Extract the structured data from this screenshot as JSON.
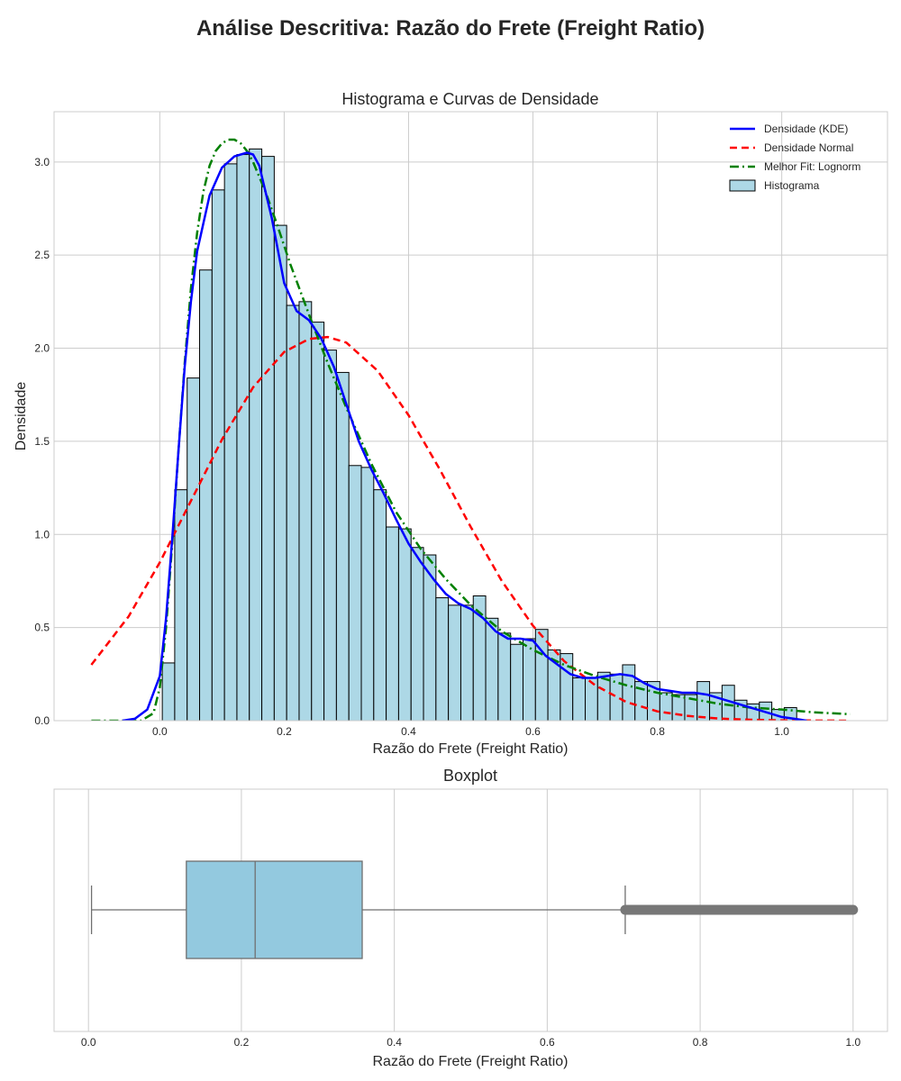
{
  "page": {
    "suptitle": "Análise Descritiva: Razão do Frete (Freight Ratio)"
  },
  "chart_data": [
    {
      "type": "bar",
      "title": "Histograma e Curvas de Densidade",
      "xlabel": "Razão do Frete (Freight Ratio)",
      "ylabel": "Densidade",
      "xlim": [
        -0.17,
        1.17
      ],
      "ylim": [
        0,
        3.27
      ],
      "x_ticks": [
        "0.0",
        "0.2",
        "0.4",
        "0.6",
        "0.8",
        "1.0"
      ],
      "x_tick_values": [
        0.0,
        0.2,
        0.4,
        0.6,
        0.8,
        1.0
      ],
      "y_ticks": [
        "0.0",
        "0.5",
        "1.0",
        "1.5",
        "2.0",
        "2.5",
        "3.0"
      ],
      "y_tick_values": [
        0,
        0.5,
        1.0,
        1.5,
        2.0,
        2.5,
        3.0
      ],
      "grid": true,
      "legend_position": "top-right",
      "histogram": {
        "name": "Histograma",
        "color": "#add8e6",
        "edge_color": "#000000",
        "bin_start": 0.004,
        "bin_width": 0.02,
        "values": [
          0.31,
          1.24,
          1.84,
          2.42,
          2.85,
          2.99,
          3.04,
          3.07,
          3.03,
          2.66,
          2.23,
          2.25,
          2.14,
          1.99,
          1.87,
          1.37,
          1.36,
          1.24,
          1.04,
          1.03,
          0.93,
          0.89,
          0.66,
          0.62,
          0.62,
          0.67,
          0.55,
          0.47,
          0.41,
          0.44,
          0.49,
          0.38,
          0.36,
          0.23,
          0.23,
          0.26,
          0.25,
          0.3,
          0.21,
          0.21,
          0.15,
          0.14,
          0.14,
          0.21,
          0.15,
          0.19,
          0.11,
          0.09,
          0.1,
          0.06,
          0.07
        ]
      },
      "series": [
        {
          "name": "Densidade (KDE)",
          "color": "#0000ff",
          "style": "solid",
          "x": [
            -0.06,
            -0.04,
            -0.02,
            0.0,
            0.01,
            0.02,
            0.03,
            0.04,
            0.05,
            0.06,
            0.08,
            0.1,
            0.12,
            0.14,
            0.15,
            0.16,
            0.18,
            0.2,
            0.22,
            0.24,
            0.26,
            0.28,
            0.3,
            0.32,
            0.34,
            0.36,
            0.38,
            0.4,
            0.42,
            0.44,
            0.46,
            0.48,
            0.5,
            0.52,
            0.54,
            0.56,
            0.58,
            0.6,
            0.62,
            0.64,
            0.66,
            0.68,
            0.7,
            0.72,
            0.74,
            0.76,
            0.78,
            0.8,
            0.82,
            0.84,
            0.86,
            0.88,
            0.9,
            0.92,
            0.94,
            0.96,
            0.98,
            1.0,
            1.02,
            1.04
          ],
          "y": [
            0.0,
            0.01,
            0.06,
            0.24,
            0.55,
            0.98,
            1.45,
            1.9,
            2.25,
            2.52,
            2.82,
            2.97,
            3.03,
            3.05,
            3.04,
            2.98,
            2.7,
            2.35,
            2.2,
            2.15,
            2.05,
            1.9,
            1.7,
            1.5,
            1.35,
            1.22,
            1.08,
            0.95,
            0.85,
            0.76,
            0.68,
            0.63,
            0.6,
            0.55,
            0.48,
            0.44,
            0.44,
            0.43,
            0.35,
            0.3,
            0.25,
            0.23,
            0.23,
            0.24,
            0.25,
            0.24,
            0.2,
            0.17,
            0.16,
            0.15,
            0.15,
            0.14,
            0.12,
            0.1,
            0.08,
            0.06,
            0.04,
            0.02,
            0.01,
            0.0
          ]
        },
        {
          "name": "Densidade Normal",
          "color": "#ff0000",
          "style": "dashed",
          "x": [
            -0.11,
            -0.05,
            0.0,
            0.05,
            0.1,
            0.15,
            0.2,
            0.24,
            0.27,
            0.3,
            0.35,
            0.4,
            0.45,
            0.5,
            0.55,
            0.6,
            0.65,
            0.7,
            0.75,
            0.8,
            0.85,
            0.9,
            0.95,
            1.0,
            1.05,
            1.11
          ],
          "y": [
            0.3,
            0.56,
            0.85,
            1.18,
            1.51,
            1.79,
            1.98,
            2.05,
            2.06,
            2.03,
            1.88,
            1.64,
            1.35,
            1.04,
            0.75,
            0.51,
            0.32,
            0.19,
            0.1,
            0.05,
            0.025,
            0.011,
            0.005,
            0.002,
            0.001,
            0.0
          ]
        },
        {
          "name": "Melhor Fit: Lognorm",
          "color": "#008000",
          "style": "dashdot",
          "x": [
            -0.11,
            -0.03,
            -0.01,
            0.0,
            0.01,
            0.02,
            0.03,
            0.04,
            0.05,
            0.06,
            0.07,
            0.08,
            0.09,
            0.1,
            0.11,
            0.12,
            0.13,
            0.14,
            0.15,
            0.17,
            0.19,
            0.21,
            0.24,
            0.27,
            0.3,
            0.34,
            0.38,
            0.42,
            0.46,
            0.5,
            0.55,
            0.6,
            0.65,
            0.7,
            0.75,
            0.8,
            0.85,
            0.9,
            0.95,
            1.0,
            1.05,
            1.11
          ],
          "y": [
            0.0,
            0.0,
            0.04,
            0.18,
            0.5,
            0.95,
            1.45,
            1.92,
            2.32,
            2.62,
            2.84,
            2.98,
            3.06,
            3.1,
            3.12,
            3.12,
            3.1,
            3.06,
            3.0,
            2.84,
            2.65,
            2.45,
            2.18,
            1.92,
            1.68,
            1.38,
            1.12,
            0.92,
            0.76,
            0.62,
            0.48,
            0.38,
            0.3,
            0.24,
            0.19,
            0.15,
            0.12,
            0.09,
            0.07,
            0.06,
            0.045,
            0.035
          ]
        }
      ]
    },
    {
      "type": "boxplot",
      "title": "Boxplot",
      "xlabel": "Razão do Frete (Freight Ratio)",
      "xlim": [
        -0.045,
        1.045
      ],
      "x_ticks": [
        "0.0",
        "0.2",
        "0.4",
        "0.6",
        "0.8",
        "1.0"
      ],
      "x_tick_values": [
        0.0,
        0.2,
        0.4,
        0.6,
        0.8,
        1.0
      ],
      "grid": true,
      "box": {
        "whisker_low": 0.004,
        "q1": 0.128,
        "median": 0.218,
        "q3": 0.358,
        "whisker_high": 0.702,
        "outlier_range": [
          0.702,
          1.0
        ],
        "fill_color": "#93c9df",
        "line_color": "#6f6f6f"
      }
    }
  ]
}
